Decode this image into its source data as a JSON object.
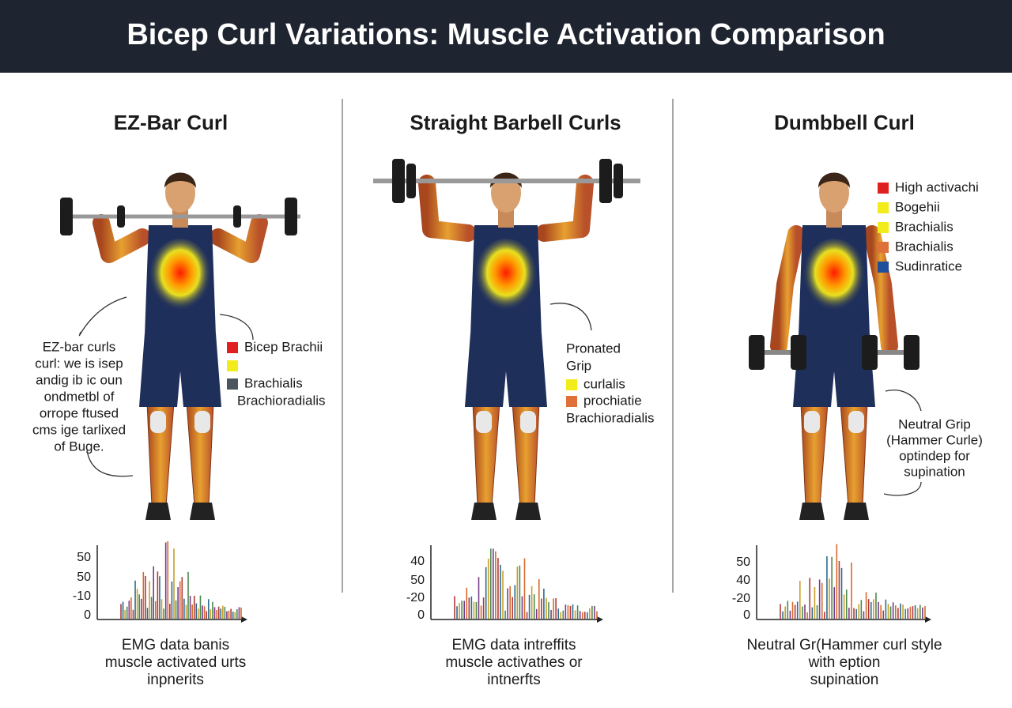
{
  "header": {
    "title": "Bicep Curl Variations: Muscle Activation Comparison"
  },
  "panels": [
    {
      "title": "EZ-Bar Curl",
      "note": [
        "EZ-bar curls",
        "curl: we is isep",
        "andig ib ic oun",
        "ondmetbl of",
        "orrope ftused",
        "cms ige tarlixed",
        "of Buge."
      ],
      "legend": [
        {
          "color": "#e02020",
          "label": "Bicep Brachii"
        },
        {
          "color": "#f2ec1a"
        },
        {
          "color": "#4a5560",
          "label": "Brachialis"
        }
      ],
      "legend_extra": "Brachioradialis",
      "emg_ticks": [
        "50",
        "50",
        "-10",
        "0"
      ],
      "caption": [
        "EMG data banis",
        "muscle activated urts",
        "inpnerits"
      ]
    },
    {
      "title": "Straight Barbell Curls",
      "note": [
        "Pronated",
        "Grip"
      ],
      "legend": [
        {
          "color": "#f2ec1a",
          "label": "curlalis"
        },
        {
          "color": "#e0703a",
          "label": "prochiatie"
        }
      ],
      "legend_extra": "Brachioradialis",
      "emg_ticks": [
        "40",
        "50",
        "-20",
        "0"
      ],
      "caption": [
        "EMG data intreffits",
        "muscle activathes or",
        "intnerfts"
      ]
    },
    {
      "title": "Dumbbell Curl",
      "note": [
        "Neutral Grip",
        "(Hammer Curle)",
        "optindep for",
        "supination"
      ],
      "legend": [
        {
          "color": "#e02020",
          "label": "High activachi"
        },
        {
          "color": "#f2ec1a",
          "label": "Bogehii"
        },
        {
          "color": "#f2ec1a",
          "label": "Brachialis"
        },
        {
          "color": "#e0703a",
          "label": "Brachialis"
        },
        {
          "color": "#1f4e9a",
          "label": "Sudinratice"
        }
      ],
      "emg_ticks": [
        "50",
        "40",
        "-20",
        "0"
      ],
      "caption": [
        "Neutral Gr(Hammer curl style",
        "with eption",
        "supination"
      ]
    }
  ]
}
